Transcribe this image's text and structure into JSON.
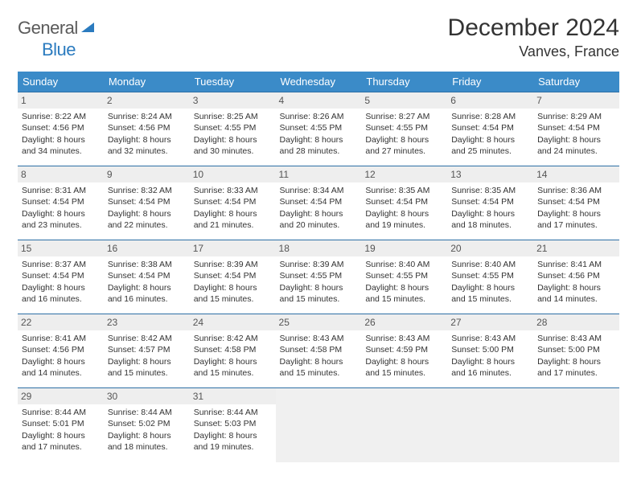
{
  "brand": {
    "part1": "General",
    "part2": "Blue"
  },
  "title": "December 2024",
  "location": "Vanves, France",
  "colors": {
    "header_bg": "#3b8bc8",
    "row_border": "#2d6fa5",
    "daynum_bg": "#eeeeee",
    "empty_bg": "#f0f0f0",
    "text": "#333333",
    "logo_gray": "#5a5a5a",
    "logo_blue": "#2b7bbf"
  },
  "weekdays": [
    "Sunday",
    "Monday",
    "Tuesday",
    "Wednesday",
    "Thursday",
    "Friday",
    "Saturday"
  ],
  "weeks": [
    [
      {
        "n": "1",
        "sr": "8:22 AM",
        "ss": "4:56 PM",
        "dl": "8 hours and 34 minutes."
      },
      {
        "n": "2",
        "sr": "8:24 AM",
        "ss": "4:56 PM",
        "dl": "8 hours and 32 minutes."
      },
      {
        "n": "3",
        "sr": "8:25 AM",
        "ss": "4:55 PM",
        "dl": "8 hours and 30 minutes."
      },
      {
        "n": "4",
        "sr": "8:26 AM",
        "ss": "4:55 PM",
        "dl": "8 hours and 28 minutes."
      },
      {
        "n": "5",
        "sr": "8:27 AM",
        "ss": "4:55 PM",
        "dl": "8 hours and 27 minutes."
      },
      {
        "n": "6",
        "sr": "8:28 AM",
        "ss": "4:54 PM",
        "dl": "8 hours and 25 minutes."
      },
      {
        "n": "7",
        "sr": "8:29 AM",
        "ss": "4:54 PM",
        "dl": "8 hours and 24 minutes."
      }
    ],
    [
      {
        "n": "8",
        "sr": "8:31 AM",
        "ss": "4:54 PM",
        "dl": "8 hours and 23 minutes."
      },
      {
        "n": "9",
        "sr": "8:32 AM",
        "ss": "4:54 PM",
        "dl": "8 hours and 22 minutes."
      },
      {
        "n": "10",
        "sr": "8:33 AM",
        "ss": "4:54 PM",
        "dl": "8 hours and 21 minutes."
      },
      {
        "n": "11",
        "sr": "8:34 AM",
        "ss": "4:54 PM",
        "dl": "8 hours and 20 minutes."
      },
      {
        "n": "12",
        "sr": "8:35 AM",
        "ss": "4:54 PM",
        "dl": "8 hours and 19 minutes."
      },
      {
        "n": "13",
        "sr": "8:35 AM",
        "ss": "4:54 PM",
        "dl": "8 hours and 18 minutes."
      },
      {
        "n": "14",
        "sr": "8:36 AM",
        "ss": "4:54 PM",
        "dl": "8 hours and 17 minutes."
      }
    ],
    [
      {
        "n": "15",
        "sr": "8:37 AM",
        "ss": "4:54 PM",
        "dl": "8 hours and 16 minutes."
      },
      {
        "n": "16",
        "sr": "8:38 AM",
        "ss": "4:54 PM",
        "dl": "8 hours and 16 minutes."
      },
      {
        "n": "17",
        "sr": "8:39 AM",
        "ss": "4:54 PM",
        "dl": "8 hours and 15 minutes."
      },
      {
        "n": "18",
        "sr": "8:39 AM",
        "ss": "4:55 PM",
        "dl": "8 hours and 15 minutes."
      },
      {
        "n": "19",
        "sr": "8:40 AM",
        "ss": "4:55 PM",
        "dl": "8 hours and 15 minutes."
      },
      {
        "n": "20",
        "sr": "8:40 AM",
        "ss": "4:55 PM",
        "dl": "8 hours and 15 minutes."
      },
      {
        "n": "21",
        "sr": "8:41 AM",
        "ss": "4:56 PM",
        "dl": "8 hours and 14 minutes."
      }
    ],
    [
      {
        "n": "22",
        "sr": "8:41 AM",
        "ss": "4:56 PM",
        "dl": "8 hours and 14 minutes."
      },
      {
        "n": "23",
        "sr": "8:42 AM",
        "ss": "4:57 PM",
        "dl": "8 hours and 15 minutes."
      },
      {
        "n": "24",
        "sr": "8:42 AM",
        "ss": "4:58 PM",
        "dl": "8 hours and 15 minutes."
      },
      {
        "n": "25",
        "sr": "8:43 AM",
        "ss": "4:58 PM",
        "dl": "8 hours and 15 minutes."
      },
      {
        "n": "26",
        "sr": "8:43 AM",
        "ss": "4:59 PM",
        "dl": "8 hours and 15 minutes."
      },
      {
        "n": "27",
        "sr": "8:43 AM",
        "ss": "5:00 PM",
        "dl": "8 hours and 16 minutes."
      },
      {
        "n": "28",
        "sr": "8:43 AM",
        "ss": "5:00 PM",
        "dl": "8 hours and 17 minutes."
      }
    ],
    [
      {
        "n": "29",
        "sr": "8:44 AM",
        "ss": "5:01 PM",
        "dl": "8 hours and 17 minutes."
      },
      {
        "n": "30",
        "sr": "8:44 AM",
        "ss": "5:02 PM",
        "dl": "8 hours and 18 minutes."
      },
      {
        "n": "31",
        "sr": "8:44 AM",
        "ss": "5:03 PM",
        "dl": "8 hours and 19 minutes."
      },
      null,
      null,
      null,
      null
    ]
  ],
  "labels": {
    "sunrise": "Sunrise: ",
    "sunset": "Sunset: ",
    "daylight": "Daylight: "
  }
}
